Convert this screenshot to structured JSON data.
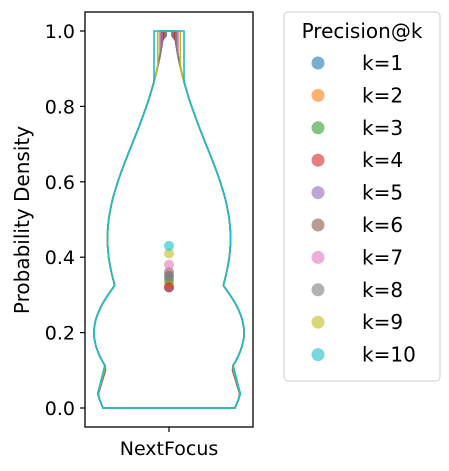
{
  "chart_data": {
    "type": "violin",
    "title": "",
    "xlabel": "",
    "ylabel": "Probability Density",
    "categories": [
      "NextFocus"
    ],
    "ylim": [
      0.0,
      1.0
    ],
    "yticks": [
      0.0,
      0.2,
      0.4,
      0.6,
      0.8,
      1.0
    ],
    "ytick_labels": [
      "0.0",
      "0.2",
      "0.4",
      "0.6",
      "0.8",
      "1.0"
    ],
    "grid": false,
    "legend": {
      "title": "Precision@k",
      "placement": "outside-right-top"
    },
    "series": [
      {
        "name": "k=1",
        "color": "#1f77b4",
        "mean": 0.32,
        "min": 0.0,
        "max": 1.0,
        "top_half_width": 0.04
      },
      {
        "name": "k=2",
        "color": "#ff7f0e",
        "mean": 0.33,
        "min": 0.0,
        "max": 1.0,
        "top_half_width": 0.06
      },
      {
        "name": "k=3",
        "color": "#2ca02c",
        "mean": 0.34,
        "min": 0.0,
        "max": 1.0,
        "top_half_width": 0.07
      },
      {
        "name": "k=4",
        "color": "#d62728",
        "mean": 0.32,
        "min": 0.0,
        "max": 1.0,
        "top_half_width": 0.07
      },
      {
        "name": "k=5",
        "color": "#9467bd",
        "mean": 0.35,
        "min": 0.0,
        "max": 1.0,
        "top_half_width": 0.09
      },
      {
        "name": "k=6",
        "color": "#8c564b",
        "mean": 0.36,
        "min": 0.0,
        "max": 1.0,
        "top_half_width": 0.1
      },
      {
        "name": "k=7",
        "color": "#e377c2",
        "mean": 0.38,
        "min": 0.0,
        "max": 1.0,
        "top_half_width": 0.12
      },
      {
        "name": "k=8",
        "color": "#7f7f7f",
        "mean": 0.35,
        "min": 0.0,
        "max": 1.0,
        "top_half_width": 0.1
      },
      {
        "name": "k=9",
        "color": "#bcbd22",
        "mean": 0.41,
        "min": 0.0,
        "max": 1.0,
        "top_half_width": 0.15
      },
      {
        "name": "k=10",
        "color": "#17becf",
        "mean": 0.43,
        "min": 0.0,
        "max": 1.0,
        "top_half_width": 0.2
      }
    ]
  }
}
